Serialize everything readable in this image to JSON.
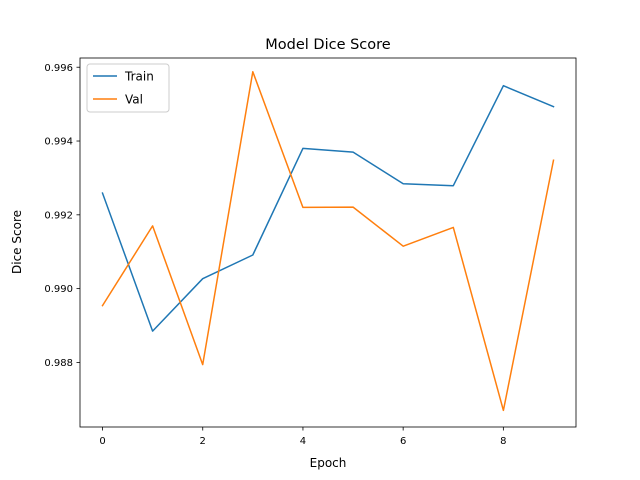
{
  "colors": {
    "train": "#1f77b4",
    "val": "#ff7f0e",
    "axis": "#000000",
    "legend_border": "#cccccc"
  },
  "chart_data": {
    "type": "line",
    "title": "Model Dice Score",
    "xlabel": "Epoch",
    "ylabel": "Dice Score",
    "x": [
      0,
      1,
      2,
      3,
      4,
      5,
      6,
      7,
      8,
      9
    ],
    "xlim": [
      -0.45,
      9.45
    ],
    "ylim": [
      0.98625,
      0.99625
    ],
    "xticks": [
      0,
      2,
      4,
      6,
      8
    ],
    "xtick_labels": [
      "0",
      "2",
      "4",
      "6",
      "8"
    ],
    "yticks": [
      0.988,
      0.99,
      0.992,
      0.994,
      0.996
    ],
    "ytick_labels": [
      "0.988",
      "0.990",
      "0.992",
      "0.994",
      "0.996"
    ],
    "grid": false,
    "legend_position": "upper-left",
    "series": [
      {
        "name": "Train",
        "color_key": "train",
        "values": [
          0.99259,
          0.98885,
          0.99027,
          0.99091,
          0.9938,
          0.9937,
          0.99284,
          0.99279,
          0.9955,
          0.99493
        ]
      },
      {
        "name": "Val",
        "color_key": "val",
        "values": [
          0.98954,
          0.9917,
          0.98794,
          0.99588,
          0.9922,
          0.99221,
          0.99115,
          0.99166,
          0.9867,
          0.99348
        ]
      }
    ]
  }
}
